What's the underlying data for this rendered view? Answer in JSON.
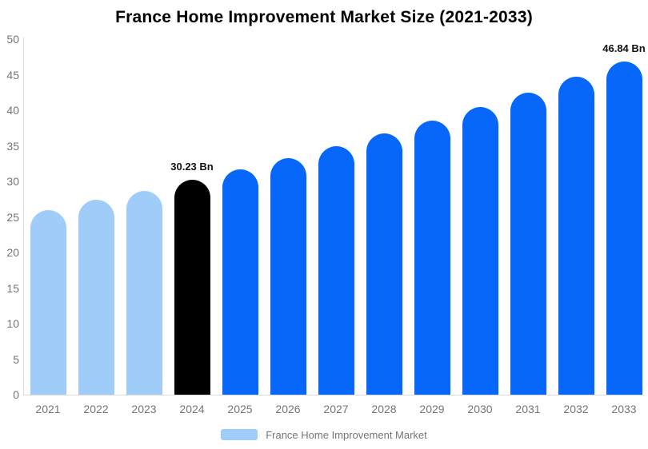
{
  "colors": {
    "bar_past": "#A0CCFA",
    "bar_current": "#000000",
    "bar_forecast": "#0667FA",
    "title_text": "#000000",
    "axis_text": "#757575",
    "value_label_text": "#111111",
    "axis_line": "#DBDBDB"
  },
  "chart_data": {
    "type": "bar",
    "title": "France Home Improvement Market Size (2021-2033)",
    "xlabel": "",
    "ylabel": "",
    "ylim": [
      0,
      50
    ],
    "y_ticks": [
      0,
      5,
      10,
      15,
      20,
      25,
      30,
      35,
      40,
      45,
      50
    ],
    "grid": false,
    "categories": [
      "2021",
      "2022",
      "2023",
      "2024",
      "2025",
      "2026",
      "2027",
      "2028",
      "2029",
      "2030",
      "2031",
      "2032",
      "2033"
    ],
    "values": [
      25.9,
      27.4,
      28.7,
      30.23,
      31.7,
      33.3,
      35.0,
      36.7,
      38.5,
      40.5,
      42.5,
      44.7,
      46.84
    ],
    "unit": "Bn",
    "bar_roles": [
      "bar_past",
      "bar_past",
      "bar_past",
      "bar_current",
      "bar_forecast",
      "bar_forecast",
      "bar_forecast",
      "bar_forecast",
      "bar_forecast",
      "bar_forecast",
      "bar_forecast",
      "bar_forecast",
      "bar_forecast"
    ],
    "point_labels": [
      "",
      "",
      "",
      "30.23 Bn",
      "",
      "",
      "",
      "",
      "",
      "",
      "",
      "",
      "46.84 Bn"
    ],
    "legend": {
      "label": "France Home Improvement Market",
      "position": "bottom"
    }
  }
}
